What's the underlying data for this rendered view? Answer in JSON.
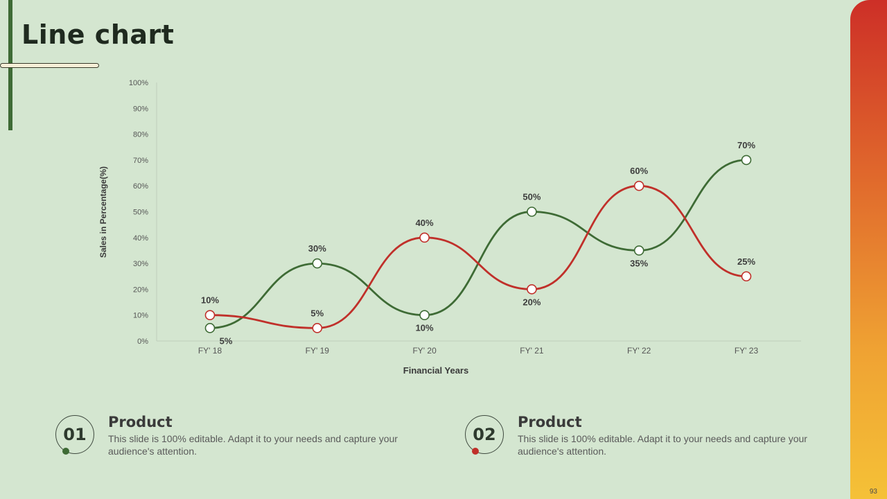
{
  "slide": {
    "title": "Line chart",
    "page_number": "93"
  },
  "chart_data": {
    "type": "line",
    "categories": [
      "FY' 18",
      "FY' 19",
      "FY' 20",
      "FY' 21",
      "FY' 22",
      "FY' 23"
    ],
    "series": [
      {
        "color": "#3e6b35",
        "values": [
          5,
          30,
          10,
          50,
          35,
          70
        ],
        "labels": [
          "5%",
          "30%",
          "10%",
          "50%",
          "35%",
          "70%"
        ]
      },
      {
        "color": "#c0302a",
        "values": [
          10,
          5,
          40,
          20,
          60,
          25
        ],
        "labels": [
          "10%",
          "5%",
          "40%",
          "20%",
          "60%",
          "25%"
        ]
      }
    ],
    "y_ticks": [
      "0%",
      "10%",
      "20%",
      "30%",
      "40%",
      "50%",
      "60%",
      "70%",
      "80%",
      "90%",
      "100%"
    ],
    "ylim": [
      0,
      100
    ],
    "xlabel": "Financial Years",
    "ylabel": "Sales in Percentage(%)",
    "smooth": true,
    "grid": false
  },
  "footer": [
    {
      "number": "01",
      "heading": "Product",
      "description": "This slide is 100% editable. Adapt it to your needs and capture your audience's attention.",
      "accent": "#3e6b35"
    },
    {
      "number": "02",
      "heading": "Product",
      "description": "This slide is 100% editable. Adapt it to your needs and capture your audience's attention.",
      "accent": "#c0302a"
    }
  ]
}
